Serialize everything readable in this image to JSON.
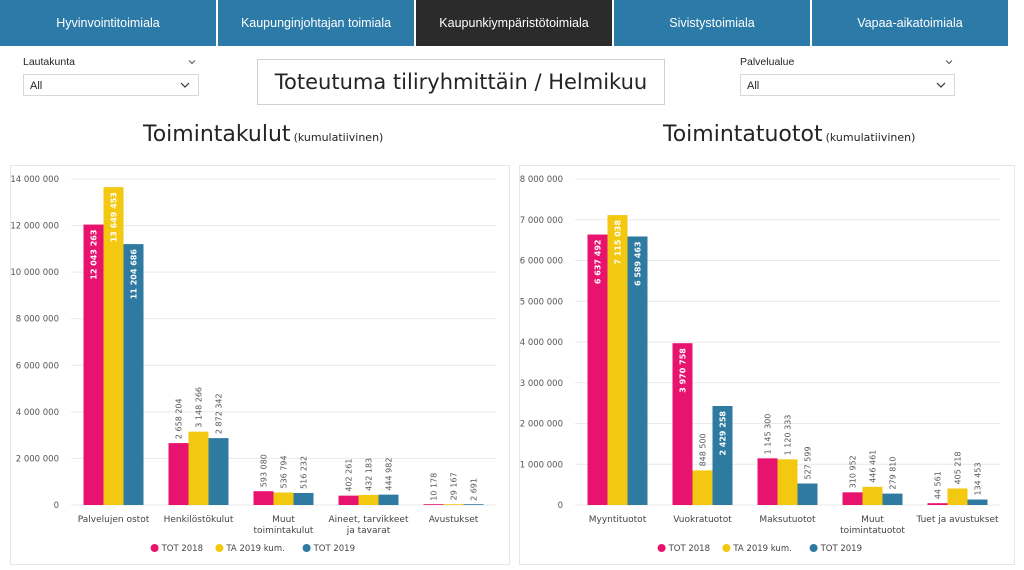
{
  "tabs": [
    {
      "label": "Hyvinvointitoimiala",
      "active": false
    },
    {
      "label": "Kaupunginjohtajan toimiala",
      "active": false
    },
    {
      "label": "Kaupunkiympäristötoimiala",
      "active": true
    },
    {
      "label": "Sivistystoimiala",
      "active": false
    },
    {
      "label": "Vapaa-aikatoimiala",
      "active": false
    }
  ],
  "colors": {
    "tab": "#2b7aa8",
    "tab_active": "#2b2b2b",
    "s1": "#e8136f",
    "s2": "#f2c811",
    "s3": "#2f7aa0"
  },
  "filters": {
    "lautakunta": {
      "label": "Lautakunta",
      "value": "All"
    },
    "palvelualue": {
      "label": "Palvelualue",
      "value": "All"
    }
  },
  "report_title": "Toteutuma tiliryhmittäin / Helmikuu",
  "charts": [
    {
      "title": "Toimintakulut",
      "subtitle": "(kumulatiivinen)"
    },
    {
      "title": "Toimintatuotot",
      "subtitle": "(kumulatiivinen)"
    }
  ],
  "chart_data": [
    {
      "type": "bar",
      "title": "Toimintakulut",
      "subtitle": "(kumulatiivinen)",
      "categories": [
        "Palvelujen ostot",
        "Henkilöstökulut",
        "Muut toimintakulut",
        "Aineet, tarvikkeet ja tavarat",
        "Avustukset"
      ],
      "category_lines": [
        [
          "Palvelujen ostot"
        ],
        [
          "Henkilöstökulut"
        ],
        [
          "Muut",
          "toimintakulut"
        ],
        [
          "Aineet, tarvikkeet",
          "ja tavarat"
        ],
        [
          "Avustukset"
        ]
      ],
      "series": [
        {
          "name": "TOT 2018",
          "values": [
            12043263,
            2658204,
            593080,
            402261,
            10178
          ],
          "labels": [
            "12 043 263",
            "2 658 204",
            "593 080",
            "402 261",
            "10 178"
          ]
        },
        {
          "name": "TA 2019 kum.",
          "values": [
            13649453,
            3148266,
            536794,
            432183,
            29167
          ],
          "labels": [
            "13 649 453",
            "3 148 266",
            "536 794",
            "432 183",
            "29 167"
          ]
        },
        {
          "name": "TOT 2019",
          "values": [
            11204686,
            2872342,
            516232,
            444982,
            2691
          ],
          "labels": [
            "11 204 686",
            "2 872 342",
            "516 232",
            "444 982",
            "2 691"
          ]
        }
      ],
      "ylim": [
        0,
        14000000
      ],
      "ticks": [
        {
          "v": 0,
          "label": "0"
        },
        {
          "v": 2000000,
          "label": "2 000 000"
        },
        {
          "v": 4000000,
          "label": "4 000 000"
        },
        {
          "v": 6000000,
          "label": "6 000 000"
        },
        {
          "v": 8000000,
          "label": "8 000 000"
        },
        {
          "v": 10000000,
          "label": "10 000 000"
        },
        {
          "v": 12000000,
          "label": "12 000 000"
        },
        {
          "v": 14000000,
          "label": "14 000 000"
        }
      ],
      "grid": true,
      "legend": "bottom-center"
    },
    {
      "type": "bar",
      "title": "Toimintatuotot",
      "subtitle": "(kumulatiivinen)",
      "categories": [
        "Myyntituotot",
        "Vuokratuotot",
        "Maksutuotot",
        "Muut toimintatuotot",
        "Tuet ja avustukset"
      ],
      "category_lines": [
        [
          "Myyntituotot"
        ],
        [
          "Vuokratuotot"
        ],
        [
          "Maksutuotot"
        ],
        [
          "Muut",
          "toimintatuotot"
        ],
        [
          "Tuet ja avustukset"
        ]
      ],
      "series": [
        {
          "name": "TOT 2018",
          "values": [
            6637492,
            3970758,
            1145300,
            310952,
            44561
          ],
          "labels": [
            "6 637 492",
            "3 970 758",
            "1 145 300",
            "310 952",
            "44 561"
          ]
        },
        {
          "name": "TA 2019 kum.",
          "values": [
            7115038,
            848500,
            1120333,
            446461,
            405218
          ],
          "labels": [
            "7 115 038",
            "848 500",
            "1 120 333",
            "446 461",
            "405 218"
          ]
        },
        {
          "name": "TOT 2019",
          "values": [
            6589463,
            2429258,
            527599,
            279810,
            134453
          ],
          "labels": [
            "6 589 463",
            "2 429 258",
            "527 599",
            "279 810",
            "134 453"
          ]
        }
      ],
      "ylim": [
        0,
        8000000
      ],
      "ticks": [
        {
          "v": 0,
          "label": "0"
        },
        {
          "v": 1000000,
          "label": "1 000 000"
        },
        {
          "v": 2000000,
          "label": "2 000 000"
        },
        {
          "v": 3000000,
          "label": "3 000 000"
        },
        {
          "v": 4000000,
          "label": "4 000 000"
        },
        {
          "v": 5000000,
          "label": "5 000 000"
        },
        {
          "v": 6000000,
          "label": "6 000 000"
        },
        {
          "v": 7000000,
          "label": "7 000 000"
        },
        {
          "v": 8000000,
          "label": "8 000 000"
        }
      ],
      "grid": true,
      "legend": "bottom-center"
    }
  ]
}
